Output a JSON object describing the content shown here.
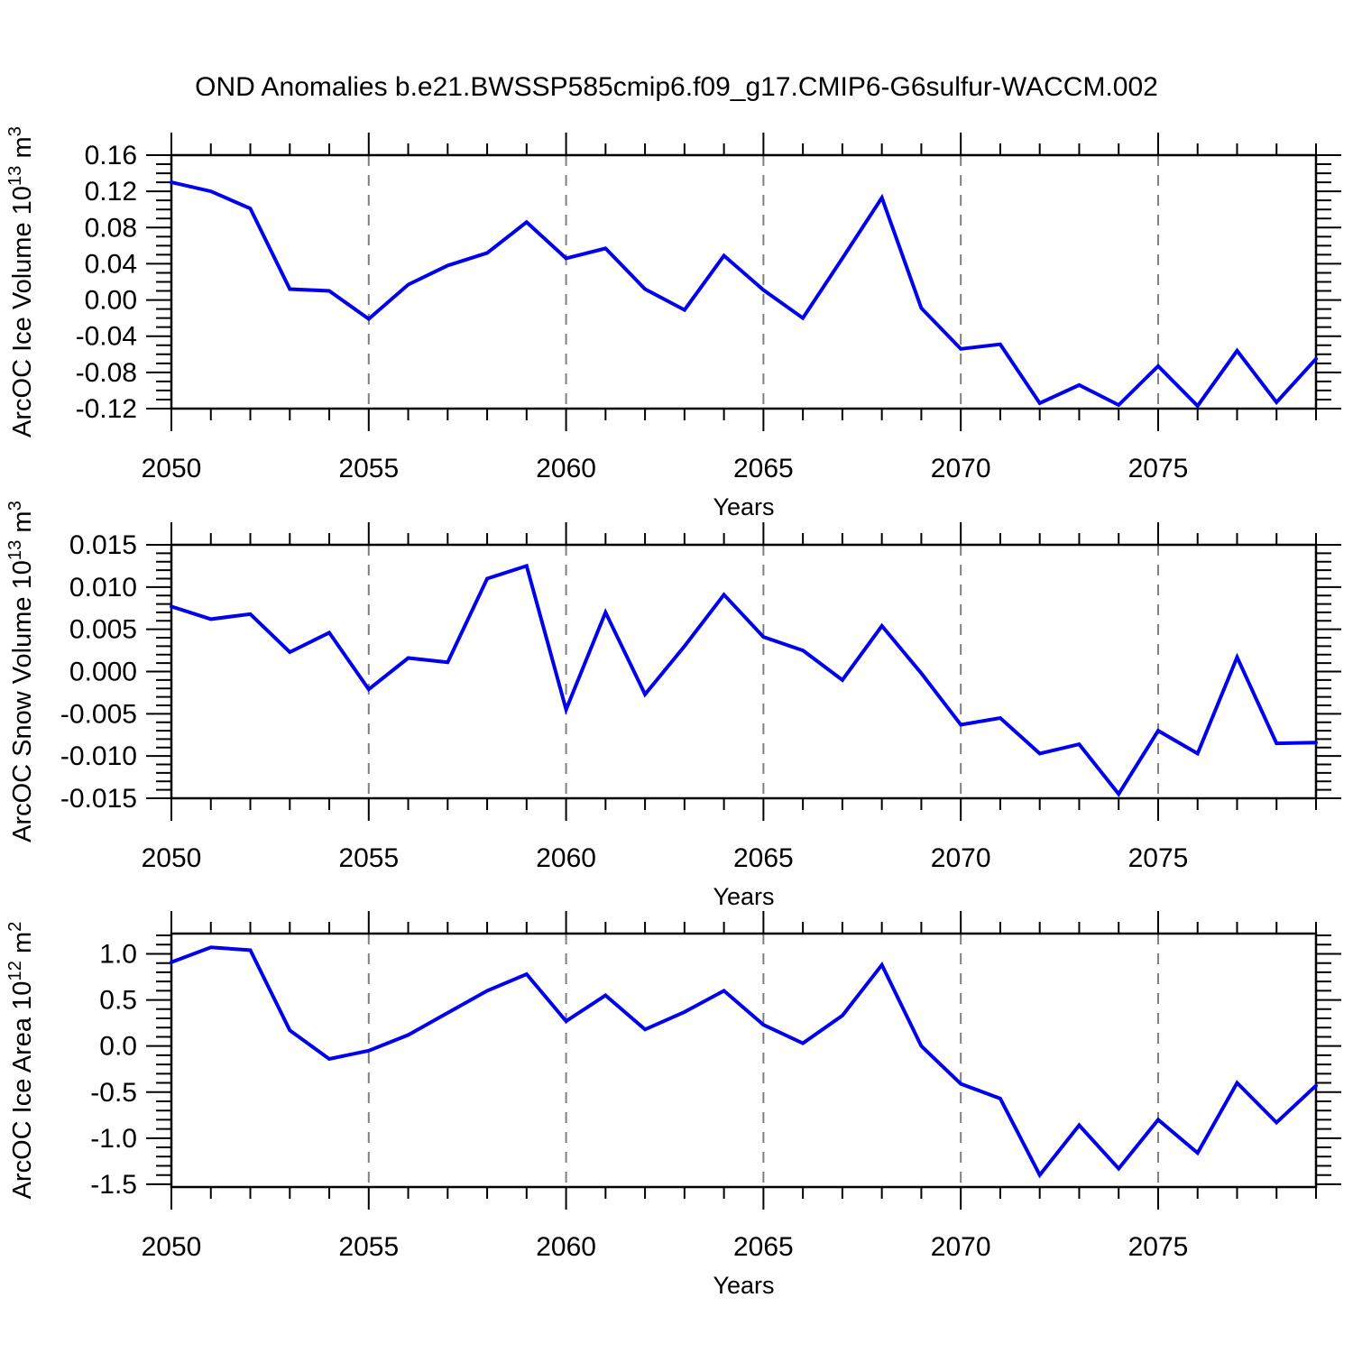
{
  "title": "OND Anomalies b.e21.BWSSP585cmip6.f09_g17.CMIP6-G6sulfur-WACCM.002",
  "xlabel": "Years",
  "colors": {
    "line": "#0000EE",
    "grid": "#7F7F7F",
    "axis": "#000000",
    "text": "#000000",
    "background": "#FFFFFF"
  },
  "chart_data": [
    {
      "type": "line",
      "id": "ice-volume",
      "ylabel": "ArcOC Ice Volume 10^13 m^3",
      "xlabel": "Years",
      "x_start": 2050,
      "x_end": 2079,
      "xticks": [
        2050,
        2055,
        2060,
        2065,
        2070,
        2075
      ],
      "xtick_labels": [
        "2050",
        "2055",
        "2060",
        "2065",
        "2070",
        "2075"
      ],
      "gridline_years": [
        2055,
        2060,
        2065,
        2070,
        2075
      ],
      "ylim": [
        -0.12,
        0.16
      ],
      "yticks": [
        0.16,
        0.12,
        0.08,
        0.04,
        0.0,
        -0.04,
        -0.08,
        -0.12
      ],
      "ytick_labels": [
        "0.16",
        "0.12",
        "0.08",
        "0.04",
        "0.00",
        "-0.04",
        "-0.08",
        "-0.12"
      ],
      "yminor_step": 0.01,
      "grid": "vertical-dashed",
      "legend": "none",
      "values": [
        0.13,
        0.12,
        0.101,
        0.012,
        0.01,
        -0.021,
        0.017,
        0.038,
        0.052,
        0.086,
        0.046,
        0.057,
        0.012,
        -0.011,
        0.049,
        0.011,
        -0.02,
        0.046,
        0.113,
        -0.009,
        -0.054,
        -0.049,
        -0.114,
        -0.094,
        -0.116,
        -0.073,
        -0.117,
        -0.056,
        -0.113,
        -0.065
      ]
    },
    {
      "type": "line",
      "id": "snow-volume",
      "ylabel": "ArcOC Snow Volume 10^13 m^3",
      "xlabel": "Years",
      "x_start": 2050,
      "x_end": 2079,
      "xticks": [
        2050,
        2055,
        2060,
        2065,
        2070,
        2075
      ],
      "xtick_labels": [
        "2050",
        "2055",
        "2060",
        "2065",
        "2070",
        "2075"
      ],
      "gridline_years": [
        2055,
        2060,
        2065,
        2070,
        2075
      ],
      "ylim": [
        -0.015,
        0.015
      ],
      "yticks": [
        0.015,
        0.01,
        0.005,
        0.0,
        -0.005,
        -0.01,
        -0.015
      ],
      "ytick_labels": [
        "0.015",
        "0.010",
        "0.005",
        "0.000",
        "-0.005",
        "-0.010",
        "-0.015"
      ],
      "yminor_step": 0.001,
      "grid": "vertical-dashed",
      "legend": "none",
      "values": [
        0.0077,
        0.0062,
        0.0068,
        0.0023,
        0.0046,
        -0.0021,
        0.0016,
        0.0011,
        0.011,
        0.0125,
        -0.0045,
        0.007,
        -0.0027,
        0.003,
        0.0091,
        0.0041,
        0.0025,
        -0.001,
        0.0054,
        -0.0002,
        -0.0063,
        -0.0055,
        -0.0097,
        -0.0086,
        -0.0145,
        -0.007,
        -0.0097,
        0.0017,
        -0.0085,
        -0.0084
      ]
    },
    {
      "type": "line",
      "id": "ice-area",
      "ylabel": "ArcOC Ice Area 10^12 m^2",
      "xlabel": "Years",
      "x_start": 2050,
      "x_end": 2079,
      "xticks": [
        2050,
        2055,
        2060,
        2065,
        2070,
        2075
      ],
      "xtick_labels": [
        "2050",
        "2055",
        "2060",
        "2065",
        "2070",
        "2075"
      ],
      "gridline_years": [
        2055,
        2060,
        2065,
        2070,
        2075
      ],
      "ylim": [
        -1.53,
        1.22
      ],
      "yticks": [
        1.0,
        0.5,
        0.0,
        -0.5,
        -1.0,
        -1.5
      ],
      "ytick_labels": [
        "1.0",
        "0.5",
        "0.0",
        "-0.5",
        "-1.0",
        "-1.5"
      ],
      "yminor_step": 0.1,
      "grid": "vertical-dashed",
      "legend": "none",
      "values": [
        0.91,
        1.07,
        1.04,
        0.17,
        -0.14,
        -0.05,
        0.12,
        0.36,
        0.6,
        0.78,
        0.27,
        0.55,
        0.18,
        0.37,
        0.6,
        0.23,
        0.03,
        0.33,
        0.88,
        0.0,
        -0.41,
        -0.57,
        -1.4,
        -0.86,
        -1.33,
        -0.8,
        -1.16,
        -0.4,
        -0.83,
        -0.43
      ]
    }
  ]
}
